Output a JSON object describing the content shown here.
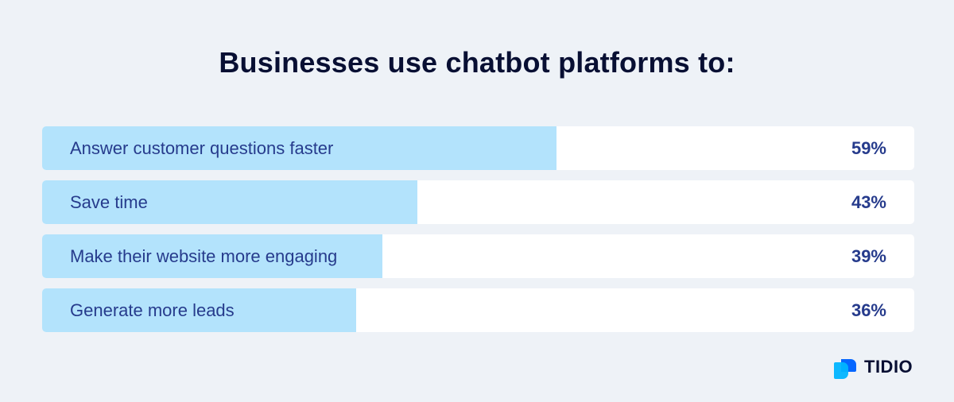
{
  "chart_data": {
    "type": "bar",
    "orientation": "horizontal",
    "title": "Businesses use chatbot platforms to:",
    "categories": [
      "Answer customer questions faster",
      "Save time",
      "Make their website more engaging",
      "Generate more leads"
    ],
    "values": [
      59,
      43,
      39,
      36
    ],
    "value_labels": [
      "59%",
      "43%",
      "39%",
      "36%"
    ],
    "xlim": [
      0,
      100
    ],
    "grid": false,
    "legend": "none",
    "colors": {
      "bar": "#b3e3fc",
      "track": "#ffffff",
      "text": "#263b8c",
      "title": "#080f33",
      "background": "#eef2f7"
    }
  },
  "brand": {
    "name": "TIDIO",
    "icon": "tidio-logo-icon",
    "colors": [
      "#0566ff",
      "#00b4ff"
    ]
  }
}
